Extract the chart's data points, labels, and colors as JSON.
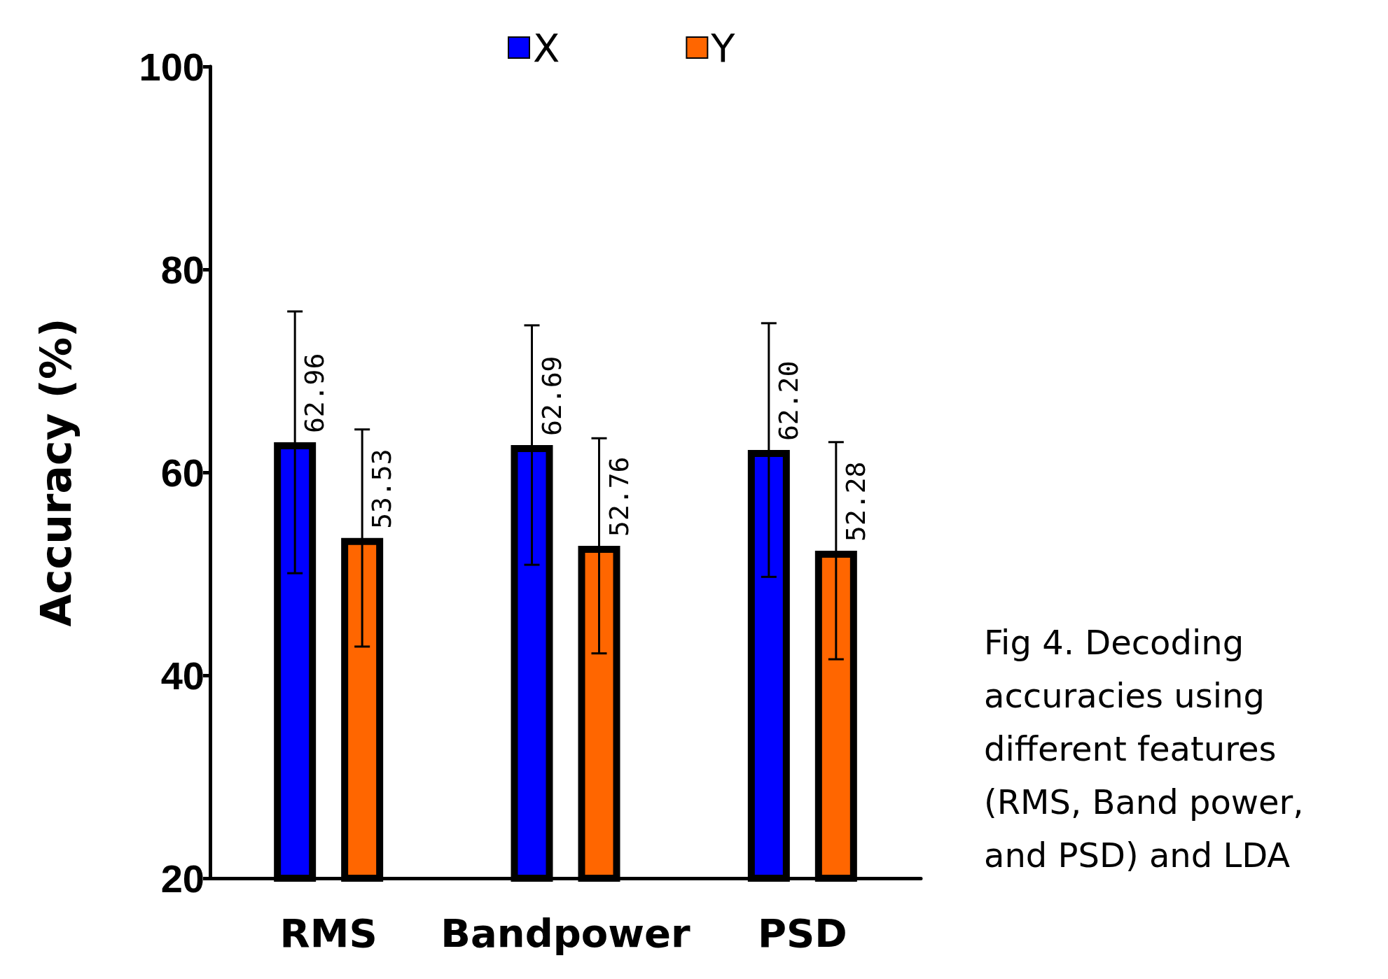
{
  "chart_data": {
    "type": "bar",
    "ylabel": "Accuracy (%)",
    "categories": [
      "RMS",
      "Bandpower",
      "PSD"
    ],
    "series": [
      {
        "name": "X",
        "color": "#0000ff",
        "values": [
          62.96,
          62.69,
          62.2
        ],
        "value_labels": [
          "62.96",
          "62.69",
          "62.20"
        ],
        "errors": [
          12.9,
          11.8,
          12.5
        ]
      },
      {
        "name": "Y",
        "color": "#ff6600",
        "values": [
          53.53,
          52.76,
          52.28
        ],
        "value_labels": [
          "53.53",
          "52.76",
          "52.28"
        ],
        "errors": [
          10.7,
          10.6,
          10.7
        ]
      }
    ],
    "ylim": [
      20,
      100
    ],
    "yticks": [
      20,
      40,
      60,
      80,
      100
    ],
    "legend": "top",
    "grid": false,
    "annotations": [
      "Fig 4. Decoding accuracies using different features (RMS, Band power, and PSD) and LDA"
    ]
  }
}
